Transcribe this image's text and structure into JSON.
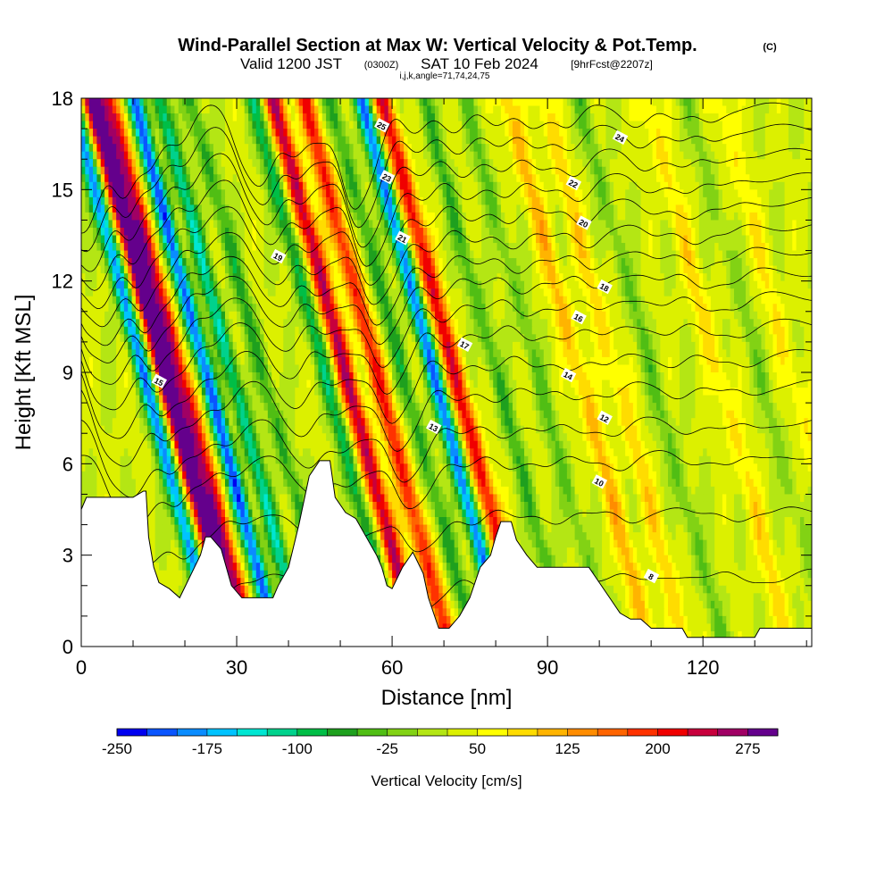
{
  "chart_data": {
    "type": "heatmap",
    "title": "Wind-Parallel Section at Max W: Vertical Velocity & Pot.Temp.",
    "copyright": "(C)",
    "subtitle_main": "Valid 1200 JST",
    "subtitle_utc": "(0300Z)",
    "subtitle_date": "SAT 10 Feb 2024",
    "subtitle_fcst": "[9hrFcst@2207z]",
    "subtitle_indices": "i,j,k,angle=71,74,24,75",
    "xlabel": "Distance [nm]",
    "ylabel": "Height [Kft MSL]",
    "xlim": [
      0,
      141
    ],
    "ylim": [
      0,
      18
    ],
    "x_ticks": [
      "0",
      "30",
      "60",
      "90",
      "120"
    ],
    "y_ticks": [
      "0",
      "3",
      "6",
      "9",
      "12",
      "15",
      "18"
    ],
    "colorbar": {
      "label": "Vertical Velocity [cm/s]",
      "min": -250,
      "max": 300,
      "step": 25,
      "tick_labels": [
        "-250",
        "-175",
        "-100",
        "-25",
        "50",
        "125",
        "200",
        "275"
      ],
      "colors": [
        "#0000f0",
        "#0a55ff",
        "#0a8cff",
        "#00c3ff",
        "#00e6d2",
        "#00d28c",
        "#00be46",
        "#1ea01e",
        "#50be14",
        "#82d214",
        "#b4e614",
        "#dcf000",
        "#ffff00",
        "#ffdc00",
        "#ffb400",
        "#ff8c00",
        "#ff6400",
        "#ff3200",
        "#f00000",
        "#c8003c",
        "#a00064",
        "#64008c"
      ]
    },
    "updrafts": [
      {
        "x": 16,
        "w": 290
      },
      {
        "x": 19,
        "w": 200
      },
      {
        "x": 51,
        "w": 220
      },
      {
        "x": 57,
        "w": 170
      },
      {
        "x": 72,
        "w": 190
      },
      {
        "x": 96,
        "w": 80
      },
      {
        "x": 103,
        "w": 60
      },
      {
        "x": 123,
        "w": 55
      },
      {
        "x": 137,
        "w": 45
      }
    ],
    "downdrafts": [
      {
        "x": 12,
        "w": -220
      },
      {
        "x": 24,
        "w": -240
      },
      {
        "x": 29,
        "w": -150
      },
      {
        "x": 35,
        "w": -90
      },
      {
        "x": 47,
        "w": -120
      },
      {
        "x": 62,
        "w": -90
      },
      {
        "x": 68,
        "w": -230
      },
      {
        "x": 80,
        "w": -80
      },
      {
        "x": 88,
        "w": -60
      },
      {
        "x": 110,
        "w": -60
      },
      {
        "x": 131,
        "w": -45
      }
    ],
    "terrain": [
      [
        0,
        4.5
      ],
      [
        1,
        4.9
      ],
      [
        10,
        4.9
      ],
      [
        12,
        5.1
      ],
      [
        12.5,
        5.1
      ],
      [
        13,
        3.6
      ],
      [
        14,
        2.6
      ],
      [
        15,
        2.1
      ],
      [
        17,
        1.9
      ],
      [
        19,
        1.6
      ],
      [
        21,
        2.3
      ],
      [
        23,
        3.0
      ],
      [
        24,
        3.6
      ],
      [
        25,
        3.6
      ],
      [
        27,
        3.2
      ],
      [
        28,
        2.6
      ],
      [
        29,
        2.0
      ],
      [
        31,
        1.6
      ],
      [
        37,
        1.6
      ],
      [
        38,
        2.0
      ],
      [
        40,
        2.6
      ],
      [
        42,
        4.0
      ],
      [
        44,
        5.6
      ],
      [
        46,
        6.1
      ],
      [
        48,
        6.1
      ],
      [
        49,
        4.9
      ],
      [
        51,
        4.4
      ],
      [
        53,
        4.2
      ],
      [
        55,
        3.6
      ],
      [
        57,
        3.0
      ],
      [
        58,
        2.6
      ],
      [
        59,
        2.0
      ],
      [
        60,
        1.9
      ],
      [
        62,
        2.6
      ],
      [
        64,
        3.1
      ],
      [
        66,
        2.4
      ],
      [
        67,
        1.6
      ],
      [
        68,
        1.1
      ],
      [
        69,
        0.6
      ],
      [
        71,
        0.6
      ],
      [
        73,
        1.0
      ],
      [
        75,
        1.6
      ],
      [
        77,
        2.6
      ],
      [
        79,
        3.0
      ],
      [
        80,
        3.6
      ],
      [
        81,
        4.1
      ],
      [
        83,
        4.1
      ],
      [
        84,
        3.5
      ],
      [
        86,
        3.0
      ],
      [
        88,
        2.6
      ],
      [
        98,
        2.6
      ],
      [
        100,
        2.1
      ],
      [
        102,
        1.6
      ],
      [
        104,
        1.1
      ],
      [
        106,
        0.9
      ],
      [
        108,
        0.9
      ],
      [
        110,
        0.6
      ],
      [
        112,
        0.6
      ],
      [
        116,
        0.6
      ],
      [
        117,
        0.3
      ],
      [
        130,
        0.3
      ],
      [
        131,
        0.6
      ],
      [
        141,
        0.6
      ]
    ],
    "theta_contours": [
      {
        "label": "8",
        "base": 2.4,
        "lx": 110,
        "ly": 2.3
      },
      {
        "label": "10",
        "base": 4.5,
        "lx": 100,
        "ly": 5.4
      },
      {
        "label": "12",
        "base": 6.3,
        "lx": 101,
        "ly": 7.5
      },
      {
        "label": "13",
        "base": 7.4,
        "lx": 68,
        "ly": 7.2
      },
      {
        "label": "14",
        "base": 8.6,
        "lx": 94,
        "ly": 8.9
      },
      {
        "label": "15",
        "base": 9.6,
        "lx": 15,
        "ly": 8.7
      },
      {
        "label": "16",
        "base": 10.6,
        "lx": 96,
        "ly": 10.8
      },
      {
        "label": "17",
        "base": 11.5,
        "lx": 74,
        "ly": 9.9
      },
      {
        "label": "18",
        "base": 12.3,
        "lx": 101,
        "ly": 11.8
      },
      {
        "label": "19",
        "base": 13.0,
        "lx": 38,
        "ly": 12.8
      },
      {
        "label": "20",
        "base": 13.8,
        "lx": 97,
        "ly": 13.9
      },
      {
        "label": "21",
        "base": 14.6,
        "lx": 62,
        "ly": 13.4
      },
      {
        "label": "22",
        "base": 15.4,
        "lx": 95,
        "ly": 15.2
      },
      {
        "label": "23",
        "base": 16.2,
        "lx": 59,
        "ly": 15.4
      },
      {
        "label": "24",
        "base": 17.0,
        "lx": 104,
        "ly": 16.7
      },
      {
        "label": "25",
        "base": 17.7,
        "lx": 58,
        "ly": 17.1
      }
    ]
  }
}
